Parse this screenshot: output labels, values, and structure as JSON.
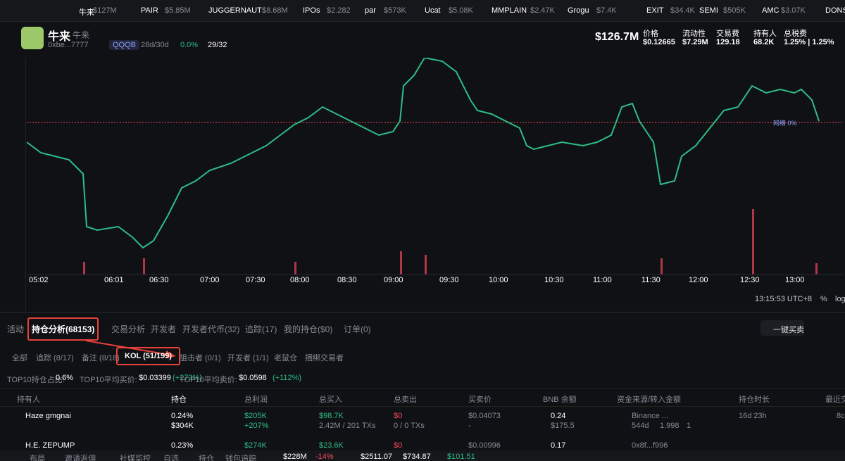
{
  "ticker": [
    {
      "name": "牛来",
      "value": "$127M"
    },
    {
      "name": "PAIR",
      "value": "$5.85M"
    },
    {
      "name": "JUGGERNAUT",
      "value": "$8.68M"
    },
    {
      "name": "IPOs",
      "value": "$2.282"
    },
    {
      "name": "par",
      "value": "$573K"
    },
    {
      "name": "Ucat",
      "value": "$5.08K"
    },
    {
      "name": "MMPLAIN",
      "value": "$2.47K"
    },
    {
      "name": "Grogu",
      "value": "$7.4K"
    },
    {
      "name": "EXIT",
      "value": "$34.4K"
    },
    {
      "name": "SEMI",
      "value": "$505K"
    },
    {
      "name": "AMC",
      "value": "$3.07K"
    },
    {
      "name": "DONS",
      "value": ""
    }
  ],
  "token": {
    "name": "牛来",
    "alias": "牛来",
    "address": "0xbe...7777",
    "tag": "QQQB",
    "age": "28d/30d",
    "change": "0.0%",
    "score": "29/32",
    "market_cap": "$126.7M",
    "stats": [
      {
        "label": "价格",
        "value": "$0.12665"
      },
      {
        "label": "流动性",
        "value": "$7.29M"
      },
      {
        "label": "交易费",
        "value": "129.18"
      },
      {
        "label": "持有人",
        "value": "68.2K"
      },
      {
        "label": "总税费",
        "value": "1.25% | 1.25%"
      }
    ]
  },
  "chart": {
    "time_ticks": [
      "05:02",
      "06:01",
      "06:30",
      "07:00",
      "07:30",
      "08:00",
      "08:30",
      "09:00",
      "09:30",
      "10:00",
      "10:30",
      "11:00",
      "11:30",
      "12:00",
      "12:30",
      "13:00"
    ],
    "line_label": "网络 0%",
    "clock": "13:15:53 UTC+8",
    "percent": "%",
    "log": "log"
  },
  "tabs": [
    "活动",
    "持仓分析(68153)",
    "交易分析",
    "开发者",
    "开发者代币(32)",
    "追踪(17)",
    "我的持仓($0)",
    "订单(0)"
  ],
  "quick_trade": "一键买卖",
  "subtabs": [
    "全部",
    "追踪 (8/17)",
    "备注 (8/18)",
    "KOL (51/199)",
    "狙击者 (0/1)",
    "开发者 (1/1)",
    "老鼠仓",
    "捆绑交易者"
  ],
  "summary": [
    {
      "label": "TOP10持仓占比:",
      "value": "0.6%",
      "change": ""
    },
    {
      "label": "TOP10平均买价:",
      "value": "$0.03399",
      "change": "(+273%)"
    },
    {
      "label": "TOP10平均卖价:",
      "value": "$0.0598",
      "change": "(+112%)"
    }
  ],
  "table": {
    "header": [
      "持有人",
      "持仓",
      "总利润",
      "总买入",
      "总卖出",
      "买卖价",
      "BNB 余额",
      "资金来源/转入金额",
      "持仓时长",
      "最近交"
    ],
    "rows": [
      [
        "Haze gmgnai",
        "0.24%",
        "$304K",
        "$205K",
        "+207%",
        "$98.7K",
        "2.42M / 201 TXs",
        "$0",
        "0 / 0 TXs",
        "$0.04073",
        "-",
        "0.24",
        "$175.5",
        "Binance ...",
        "544d",
        "1.998",
        "1",
        "16d 23h",
        "8c"
      ],
      [
        "H.E. ZEPUMP",
        "0.23%",
        "",
        "$274K",
        "",
        "$23.6K",
        "",
        "$0",
        "",
        "$0.00996",
        "",
        "0.17",
        "",
        "0x8f...f996",
        "",
        "",
        "",
        "",
        ""
      ]
    ]
  },
  "footer": {
    "items": [
      "布局",
      "邀请返佣",
      "社媒监控",
      "自选",
      "持仓",
      "钱包追踪"
    ],
    "cap": "$228M",
    "cap_change": "-14%",
    "prices": [
      "$2511.07",
      "$734.87",
      "$101.51"
    ]
  }
}
